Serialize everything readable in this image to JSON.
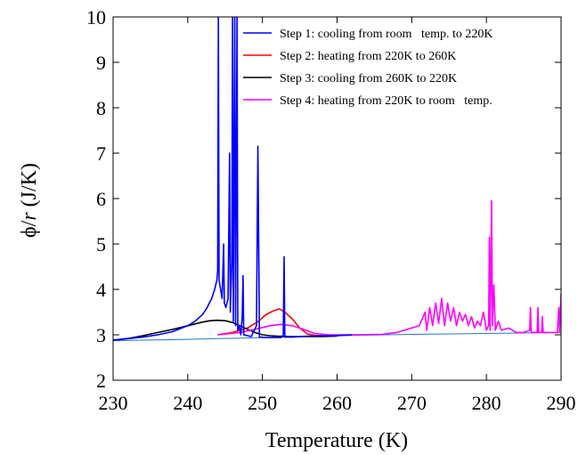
{
  "chart_data": {
    "type": "line",
    "title": "",
    "xlabel": "Temperature (K)",
    "ylabel_symbol": "ϕ/",
    "ylabel_italic": "r",
    "ylabel_unit": " (J/K)",
    "xlim": [
      230,
      290
    ],
    "ylim": [
      2,
      10
    ],
    "xticks": [
      230,
      240,
      250,
      260,
      270,
      280,
      290
    ],
    "yticks": [
      2,
      3,
      4,
      5,
      6,
      7,
      8,
      9,
      10
    ],
    "grid": false,
    "legend_position": "top-right",
    "series": [
      {
        "name": "Step 1: cooling from room   temp. to 220K",
        "color": "#0000ff",
        "points": [
          [
            230,
            2.88
          ],
          [
            234,
            2.95
          ],
          [
            236,
            3.0
          ],
          [
            238,
            3.07
          ],
          [
            240,
            3.2
          ],
          [
            241,
            3.3
          ],
          [
            242,
            3.45
          ],
          [
            242.6,
            3.6
          ],
          [
            243.2,
            3.8
          ],
          [
            243.6,
            4.0
          ],
          [
            243.9,
            4.2
          ],
          [
            244.0,
            4.4
          ],
          [
            244.1,
            10.0
          ],
          [
            244.2,
            4.2
          ],
          [
            244.4,
            4.0
          ],
          [
            244.6,
            3.8
          ],
          [
            244.8,
            5.0
          ],
          [
            244.9,
            3.7
          ],
          [
            245.1,
            3.6
          ],
          [
            245.4,
            3.8
          ],
          [
            245.6,
            7.0
          ],
          [
            245.7,
            3.5
          ],
          [
            245.9,
            4.6
          ],
          [
            246.0,
            10.0
          ],
          [
            246.1,
            3.3
          ],
          [
            246.3,
            10.0
          ],
          [
            246.4,
            3.2
          ],
          [
            246.6,
            10.0
          ],
          [
            246.7,
            3.1
          ],
          [
            246.9,
            3.2
          ],
          [
            247.1,
            3.0
          ],
          [
            247.3,
            3.4
          ],
          [
            247.4,
            4.3
          ],
          [
            247.5,
            3.0
          ],
          [
            248,
            2.98
          ],
          [
            248.5,
            2.96
          ],
          [
            249.2,
            3.2
          ],
          [
            249.4,
            7.15
          ],
          [
            249.6,
            2.95
          ],
          [
            250.5,
            2.94
          ],
          [
            251.5,
            2.94
          ],
          [
            252.5,
            2.94
          ],
          [
            252.8,
            3.0
          ],
          [
            252.9,
            4.72
          ],
          [
            253.0,
            2.95
          ],
          [
            254,
            2.95
          ],
          [
            256,
            2.97
          ],
          [
            258,
            2.98
          ],
          [
            260,
            2.98
          ],
          [
            262,
            3.0
          ]
        ]
      },
      {
        "name": "Step 2: heating from 220K to 260K",
        "color": "#ff0000",
        "points": [
          [
            244,
            3.0
          ],
          [
            246,
            3.05
          ],
          [
            248,
            3.15
          ],
          [
            249.5,
            3.3
          ],
          [
            250.5,
            3.45
          ],
          [
            251.5,
            3.53
          ],
          [
            252.3,
            3.57
          ],
          [
            253,
            3.5
          ],
          [
            254,
            3.35
          ],
          [
            255,
            3.15
          ],
          [
            256,
            3.02
          ],
          [
            257,
            2.99
          ],
          [
            258,
            2.98
          ],
          [
            260,
            2.98
          ]
        ]
      },
      {
        "name": "Step 3: cooling from 260K to 220K",
        "color": "#000000",
        "points": [
          [
            230,
            2.88
          ],
          [
            232,
            2.92
          ],
          [
            234,
            2.98
          ],
          [
            236,
            3.05
          ],
          [
            238,
            3.12
          ],
          [
            240,
            3.2
          ],
          [
            242,
            3.28
          ],
          [
            243,
            3.31
          ],
          [
            244,
            3.32
          ],
          [
            245,
            3.31
          ],
          [
            246,
            3.27
          ],
          [
            247,
            3.2
          ],
          [
            248,
            3.12
          ],
          [
            249,
            3.05
          ],
          [
            250,
            3.0
          ],
          [
            251,
            2.98
          ],
          [
            252,
            2.97
          ],
          [
            254,
            2.96
          ],
          [
            256,
            2.96
          ],
          [
            258,
            2.96
          ],
          [
            260,
            2.97
          ]
        ]
      },
      {
        "name": "Step 4: heating from 220K to room   temp.",
        "color": "#ff00ff",
        "points": [
          [
            244,
            3.0
          ],
          [
            247,
            3.05
          ],
          [
            249,
            3.12
          ],
          [
            251,
            3.2
          ],
          [
            252.5,
            3.23
          ],
          [
            254,
            3.2
          ],
          [
            255.5,
            3.12
          ],
          [
            257,
            3.03
          ],
          [
            259,
            3.0
          ],
          [
            262,
            3.0
          ],
          [
            266,
            3.01
          ],
          [
            268,
            3.05
          ],
          [
            269,
            3.1
          ],
          [
            270,
            3.15
          ],
          [
            271,
            3.2
          ],
          [
            271.8,
            3.5
          ],
          [
            272.0,
            3.1
          ],
          [
            272.4,
            3.6
          ],
          [
            272.8,
            3.2
          ],
          [
            273.2,
            3.7
          ],
          [
            273.6,
            3.25
          ],
          [
            274.0,
            3.8
          ],
          [
            274.4,
            3.2
          ],
          [
            274.8,
            3.7
          ],
          [
            275.2,
            3.3
          ],
          [
            275.6,
            3.6
          ],
          [
            276.0,
            3.2
          ],
          [
            276.4,
            3.5
          ],
          [
            276.8,
            3.3
          ],
          [
            277.2,
            3.45
          ],
          [
            277.6,
            3.2
          ],
          [
            278.0,
            3.4
          ],
          [
            278.4,
            3.15
          ],
          [
            278.8,
            3.3
          ],
          [
            279.2,
            3.2
          ],
          [
            279.6,
            3.5
          ],
          [
            280.0,
            3.1
          ],
          [
            280.3,
            3.2
          ],
          [
            280.4,
            5.15
          ],
          [
            280.5,
            3.1
          ],
          [
            280.7,
            5.95
          ],
          [
            280.8,
            3.2
          ],
          [
            281.0,
            4.1
          ],
          [
            281.2,
            3.1
          ],
          [
            281.6,
            3.3
          ],
          [
            282,
            3.1
          ],
          [
            283,
            3.15
          ],
          [
            284,
            3.05
          ],
          [
            285,
            3.05
          ],
          [
            285.8,
            3.1
          ],
          [
            285.9,
            3.6
          ],
          [
            286.0,
            3.05
          ],
          [
            286.8,
            3.05
          ],
          [
            286.9,
            3.6
          ],
          [
            287.0,
            3.05
          ],
          [
            287.4,
            3.05
          ],
          [
            287.5,
            3.4
          ],
          [
            287.6,
            3.05
          ],
          [
            288.5,
            3.05
          ],
          [
            289.5,
            3.05
          ],
          [
            289.7,
            3.6
          ],
          [
            289.8,
            3.05
          ],
          [
            290,
            3.9
          ]
        ]
      },
      {
        "name": "",
        "color": "#1f77d4",
        "points": [
          [
            230,
            2.87
          ],
          [
            240,
            2.9
          ],
          [
            250,
            2.94
          ],
          [
            260,
            2.98
          ],
          [
            270,
            3.01
          ],
          [
            280,
            3.03
          ],
          [
            290,
            3.05
          ]
        ]
      }
    ]
  }
}
